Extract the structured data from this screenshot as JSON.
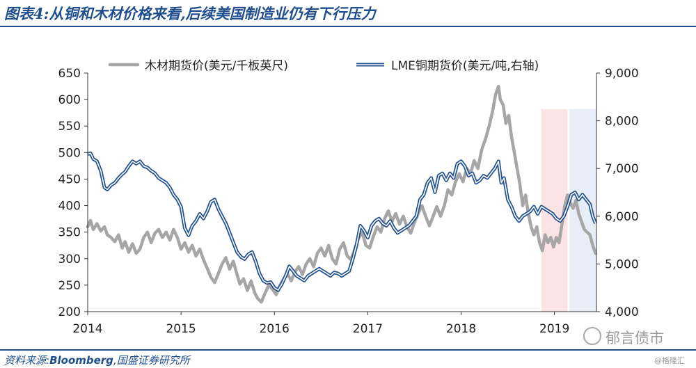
{
  "header": {
    "title": "图表4:从铜和木材价格来看,后续美国制造业仍有下行压力"
  },
  "footer": {
    "source_prefix": "资料来源:",
    "source_bloomberg": "Bloomberg",
    "source_suffix": ",国盛证券研究所",
    "watermark": "郁言债市",
    "corner_mark": "@格隆汇"
  },
  "colors": {
    "lumber": "#a6a6a6",
    "copper_outline": "#1f4f8f",
    "copper_inner": "#ffffff",
    "band_pink": "#fbe3e6",
    "band_blue": "#e8eef8",
    "text": "#222222"
  },
  "chart_data": {
    "type": "line",
    "x_ticks": [
      "2014",
      "2015",
      "2016",
      "2017",
      "2018",
      "2019"
    ],
    "x_range": [
      2014.0,
      2019.45
    ],
    "y_left": {
      "range": [
        200,
        650
      ],
      "ticks": [
        "200",
        "250",
        "300",
        "350",
        "400",
        "450",
        "500",
        "550",
        "600",
        "650"
      ]
    },
    "y_right": {
      "range": [
        4000,
        9000
      ],
      "ticks": [
        "4,000",
        "5,000",
        "6,000",
        "7,000",
        "8,000",
        "9,000"
      ]
    },
    "legend": {
      "position": "top",
      "lumber_label": "木材期货价(美元/千板英尺)",
      "copper_label": "LME铜期货价(美元/吨,右轴)"
    },
    "shaded_bands": [
      {
        "x_start": 2018.86,
        "x_end": 2019.14,
        "color": "pink"
      },
      {
        "x_start": 2019.16,
        "x_end": 2019.45,
        "color": "blue"
      }
    ],
    "series": [
      {
        "name": "木材期货价(美元/千板英尺)",
        "axis": "left",
        "points": [
          [
            2014.0,
            360
          ],
          [
            2014.03,
            372
          ],
          [
            2014.06,
            355
          ],
          [
            2014.1,
            366
          ],
          [
            2014.14,
            352
          ],
          [
            2014.18,
            360
          ],
          [
            2014.21,
            345
          ],
          [
            2014.25,
            340
          ],
          [
            2014.29,
            332
          ],
          [
            2014.33,
            345
          ],
          [
            2014.37,
            320
          ],
          [
            2014.4,
            332
          ],
          [
            2014.44,
            312
          ],
          [
            2014.48,
            328
          ],
          [
            2014.52,
            310
          ],
          [
            2014.56,
            318
          ],
          [
            2014.6,
            340
          ],
          [
            2014.64,
            350
          ],
          [
            2014.68,
            330
          ],
          [
            2014.72,
            348
          ],
          [
            2014.76,
            355
          ],
          [
            2014.8,
            340
          ],
          [
            2014.84,
            350
          ],
          [
            2014.88,
            335
          ],
          [
            2014.92,
            355
          ],
          [
            2014.96,
            340
          ],
          [
            2015.0,
            318
          ],
          [
            2015.04,
            330
          ],
          [
            2015.08,
            312
          ],
          [
            2015.12,
            325
          ],
          [
            2015.16,
            305
          ],
          [
            2015.2,
            318
          ],
          [
            2015.24,
            298
          ],
          [
            2015.28,
            282
          ],
          [
            2015.32,
            265
          ],
          [
            2015.36,
            255
          ],
          [
            2015.4,
            272
          ],
          [
            2015.44,
            290
          ],
          [
            2015.48,
            302
          ],
          [
            2015.52,
            280
          ],
          [
            2015.56,
            295
          ],
          [
            2015.6,
            270
          ],
          [
            2015.63,
            252
          ],
          [
            2015.67,
            262
          ],
          [
            2015.71,
            240
          ],
          [
            2015.75,
            258
          ],
          [
            2015.79,
            235
          ],
          [
            2015.82,
            225
          ],
          [
            2015.86,
            218
          ],
          [
            2015.9,
            235
          ],
          [
            2015.94,
            250
          ],
          [
            2015.98,
            242
          ],
          [
            2016.02,
            232
          ],
          [
            2016.06,
            250
          ],
          [
            2016.1,
            262
          ],
          [
            2016.14,
            272
          ],
          [
            2016.18,
            258
          ],
          [
            2016.22,
            275
          ],
          [
            2016.26,
            285
          ],
          [
            2016.3,
            270
          ],
          [
            2016.34,
            290
          ],
          [
            2016.38,
            300
          ],
          [
            2016.42,
            285
          ],
          [
            2016.46,
            310
          ],
          [
            2016.5,
            320
          ],
          [
            2016.54,
            305
          ],
          [
            2016.58,
            325
          ],
          [
            2016.62,
            300
          ],
          [
            2016.66,
            290
          ],
          [
            2016.7,
            318
          ],
          [
            2016.74,
            330
          ],
          [
            2016.78,
            305
          ],
          [
            2016.82,
            298
          ],
          [
            2016.86,
            318
          ],
          [
            2016.9,
            338
          ],
          [
            2016.94,
            350
          ],
          [
            2016.98,
            325
          ],
          [
            2017.02,
            320
          ],
          [
            2017.06,
            342
          ],
          [
            2017.1,
            360
          ],
          [
            2017.14,
            350
          ],
          [
            2017.18,
            375
          ],
          [
            2017.22,
            390
          ],
          [
            2017.26,
            370
          ],
          [
            2017.3,
            385
          ],
          [
            2017.34,
            365
          ],
          [
            2017.38,
            380
          ],
          [
            2017.42,
            360
          ],
          [
            2017.46,
            348
          ],
          [
            2017.5,
            368
          ],
          [
            2017.54,
            385
          ],
          [
            2017.58,
            400
          ],
          [
            2017.62,
            380
          ],
          [
            2017.66,
            362
          ],
          [
            2017.7,
            380
          ],
          [
            2017.74,
            398
          ],
          [
            2017.78,
            380
          ],
          [
            2017.82,
            400
          ],
          [
            2017.86,
            430
          ],
          [
            2017.9,
            420
          ],
          [
            2017.94,
            445
          ],
          [
            2017.98,
            460
          ],
          [
            2018.02,
            445
          ],
          [
            2018.06,
            470
          ],
          [
            2018.1,
            460
          ],
          [
            2018.14,
            485
          ],
          [
            2018.18,
            470
          ],
          [
            2018.22,
            505
          ],
          [
            2018.26,
            525
          ],
          [
            2018.3,
            550
          ],
          [
            2018.34,
            580
          ],
          [
            2018.37,
            610
          ],
          [
            2018.4,
            625
          ],
          [
            2018.42,
            600
          ],
          [
            2018.45,
            590
          ],
          [
            2018.48,
            555
          ],
          [
            2018.51,
            570
          ],
          [
            2018.54,
            530
          ],
          [
            2018.57,
            500
          ],
          [
            2018.6,
            470
          ],
          [
            2018.63,
            440
          ],
          [
            2018.66,
            400
          ],
          [
            2018.69,
            420
          ],
          [
            2018.72,
            385
          ],
          [
            2018.75,
            360
          ],
          [
            2018.78,
            345
          ],
          [
            2018.81,
            360
          ],
          [
            2018.84,
            330
          ],
          [
            2018.87,
            315
          ],
          [
            2018.9,
            345
          ],
          [
            2018.93,
            330
          ],
          [
            2018.96,
            340
          ],
          [
            2018.99,
            322
          ],
          [
            2019.02,
            340
          ],
          [
            2019.05,
            330
          ],
          [
            2019.08,
            365
          ],
          [
            2019.11,
            400
          ],
          [
            2019.14,
            420
          ],
          [
            2019.17,
            405
          ],
          [
            2019.2,
            395
          ],
          [
            2019.23,
            410
          ],
          [
            2019.26,
            385
          ],
          [
            2019.29,
            370
          ],
          [
            2019.32,
            355
          ],
          [
            2019.35,
            350
          ],
          [
            2019.38,
            345
          ],
          [
            2019.41,
            325
          ],
          [
            2019.44,
            310
          ]
        ]
      },
      {
        "name": "LME铜期货价(美元/吨,右轴)",
        "axis": "right",
        "points": [
          [
            2014.0,
            7300
          ],
          [
            2014.03,
            7320
          ],
          [
            2014.06,
            7200
          ],
          [
            2014.1,
            7150
          ],
          [
            2014.14,
            6950
          ],
          [
            2014.18,
            6600
          ],
          [
            2014.21,
            6560
          ],
          [
            2014.25,
            6650
          ],
          [
            2014.29,
            6700
          ],
          [
            2014.33,
            6800
          ],
          [
            2014.37,
            6880
          ],
          [
            2014.4,
            6930
          ],
          [
            2014.44,
            7050
          ],
          [
            2014.48,
            7150
          ],
          [
            2014.52,
            7100
          ],
          [
            2014.56,
            7150
          ],
          [
            2014.6,
            7050
          ],
          [
            2014.64,
            7020
          ],
          [
            2014.68,
            6950
          ],
          [
            2014.72,
            6900
          ],
          [
            2014.76,
            6800
          ],
          [
            2014.8,
            6750
          ],
          [
            2014.84,
            6700
          ],
          [
            2014.88,
            6600
          ],
          [
            2014.92,
            6450
          ],
          [
            2014.96,
            6350
          ],
          [
            2015.0,
            6200
          ],
          [
            2015.04,
            5750
          ],
          [
            2015.08,
            5600
          ],
          [
            2015.12,
            5800
          ],
          [
            2015.16,
            5900
          ],
          [
            2015.2,
            6050
          ],
          [
            2015.24,
            5950
          ],
          [
            2015.28,
            6100
          ],
          [
            2015.32,
            6300
          ],
          [
            2015.36,
            6350
          ],
          [
            2015.4,
            6150
          ],
          [
            2015.44,
            6000
          ],
          [
            2015.48,
            5850
          ],
          [
            2015.52,
            5650
          ],
          [
            2015.56,
            5450
          ],
          [
            2015.6,
            5250
          ],
          [
            2015.64,
            5150
          ],
          [
            2015.68,
            5100
          ],
          [
            2015.72,
            5200
          ],
          [
            2015.76,
            5250
          ],
          [
            2015.8,
            5050
          ],
          [
            2015.84,
            4800
          ],
          [
            2015.88,
            4650
          ],
          [
            2015.92,
            4600
          ],
          [
            2015.96,
            4620
          ],
          [
            2016.0,
            4500
          ],
          [
            2016.04,
            4450
          ],
          [
            2016.08,
            4580
          ],
          [
            2016.12,
            4750
          ],
          [
            2016.16,
            4950
          ],
          [
            2016.2,
            4850
          ],
          [
            2016.24,
            4750
          ],
          [
            2016.28,
            4700
          ],
          [
            2016.32,
            4650
          ],
          [
            2016.36,
            4750
          ],
          [
            2016.4,
            4800
          ],
          [
            2016.44,
            4850
          ],
          [
            2016.48,
            4900
          ],
          [
            2016.52,
            4850
          ],
          [
            2016.56,
            4800
          ],
          [
            2016.6,
            4750
          ],
          [
            2016.64,
            4820
          ],
          [
            2016.68,
            4800
          ],
          [
            2016.72,
            4750
          ],
          [
            2016.76,
            4800
          ],
          [
            2016.8,
            4850
          ],
          [
            2016.84,
            5100
          ],
          [
            2016.88,
            5400
          ],
          [
            2016.92,
            5800
          ],
          [
            2016.96,
            5700
          ],
          [
            2017.0,
            5550
          ],
          [
            2017.04,
            5800
          ],
          [
            2017.08,
            5900
          ],
          [
            2017.12,
            5950
          ],
          [
            2017.16,
            5850
          ],
          [
            2017.2,
            5800
          ],
          [
            2017.24,
            5900
          ],
          [
            2017.28,
            5750
          ],
          [
            2017.32,
            5650
          ],
          [
            2017.36,
            5700
          ],
          [
            2017.4,
            5750
          ],
          [
            2017.44,
            5800
          ],
          [
            2017.48,
            5900
          ],
          [
            2017.52,
            6000
          ],
          [
            2017.56,
            6350
          ],
          [
            2017.6,
            6450
          ],
          [
            2017.64,
            6700
          ],
          [
            2017.68,
            6800
          ],
          [
            2017.72,
            6500
          ],
          [
            2017.76,
            6850
          ],
          [
            2017.8,
            6900
          ],
          [
            2017.84,
            6750
          ],
          [
            2017.88,
            6900
          ],
          [
            2017.92,
            6800
          ],
          [
            2017.96,
            7100
          ],
          [
            2018.0,
            7150
          ],
          [
            2018.04,
            7050
          ],
          [
            2018.08,
            6850
          ],
          [
            2018.12,
            6900
          ],
          [
            2018.16,
            6700
          ],
          [
            2018.2,
            6750
          ],
          [
            2018.24,
            6850
          ],
          [
            2018.28,
            6800
          ],
          [
            2018.32,
            6900
          ],
          [
            2018.36,
            7000
          ],
          [
            2018.4,
            7150
          ],
          [
            2018.43,
            6700
          ],
          [
            2018.46,
            6800
          ],
          [
            2018.5,
            6350
          ],
          [
            2018.54,
            6200
          ],
          [
            2018.58,
            6000
          ],
          [
            2018.62,
            5900
          ],
          [
            2018.66,
            6000
          ],
          [
            2018.7,
            6050
          ],
          [
            2018.74,
            6100
          ],
          [
            2018.78,
            6200
          ],
          [
            2018.82,
            6050
          ],
          [
            2018.86,
            6200
          ],
          [
            2018.9,
            6150
          ],
          [
            2018.94,
            6100
          ],
          [
            2018.98,
            6050
          ],
          [
            2019.02,
            5950
          ],
          [
            2019.06,
            5900
          ],
          [
            2019.1,
            6000
          ],
          [
            2019.14,
            6200
          ],
          [
            2019.18,
            6450
          ],
          [
            2019.22,
            6500
          ],
          [
            2019.26,
            6350
          ],
          [
            2019.3,
            6450
          ],
          [
            2019.34,
            6350
          ],
          [
            2019.38,
            6250
          ],
          [
            2019.41,
            6000
          ],
          [
            2019.44,
            5850
          ]
        ]
      }
    ]
  }
}
